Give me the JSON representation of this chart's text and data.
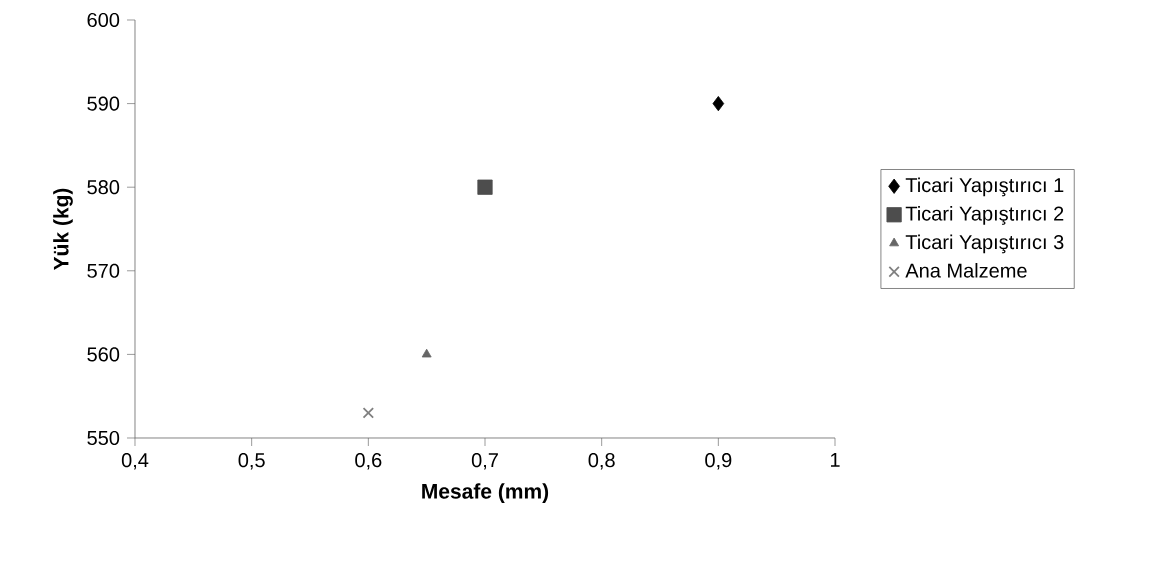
{
  "chart_data": {
    "type": "scatter",
    "xlabel": "Mesafe (mm)",
    "ylabel": "Yük (kg)",
    "xlim": [
      0.4,
      1
    ],
    "ylim": [
      550,
      600
    ],
    "xticks": [
      {
        "value": 0.4,
        "label": "0,4"
      },
      {
        "value": 0.5,
        "label": "0,5"
      },
      {
        "value": 0.6,
        "label": "0,6"
      },
      {
        "value": 0.7,
        "label": "0,7"
      },
      {
        "value": 0.8,
        "label": "0,8"
      },
      {
        "value": 0.9,
        "label": "0,9"
      },
      1
    ],
    "yticks": [
      550,
      560,
      570,
      580,
      590,
      600
    ],
    "legend": "right",
    "series": [
      {
        "name": "Ticari Yapıştırıcı 1",
        "color": "#000000",
        "marker": "diamond",
        "x": [
          0.9
        ],
        "values": [
          590
        ]
      },
      {
        "name": "Ticari Yapıştırıcı 2",
        "color": "#4d4d4d",
        "marker": "square",
        "x": [
          0.7
        ],
        "values": [
          580
        ]
      },
      {
        "name": "Ticari Yapıştırıcı 3",
        "color": "#666666",
        "marker": "triangle",
        "x": [
          0.65
        ],
        "values": [
          560
        ]
      },
      {
        "name": "Ana Malzeme",
        "color": "#808080",
        "marker": "cross",
        "x": [
          0.6
        ],
        "values": [
          553
        ]
      }
    ]
  }
}
